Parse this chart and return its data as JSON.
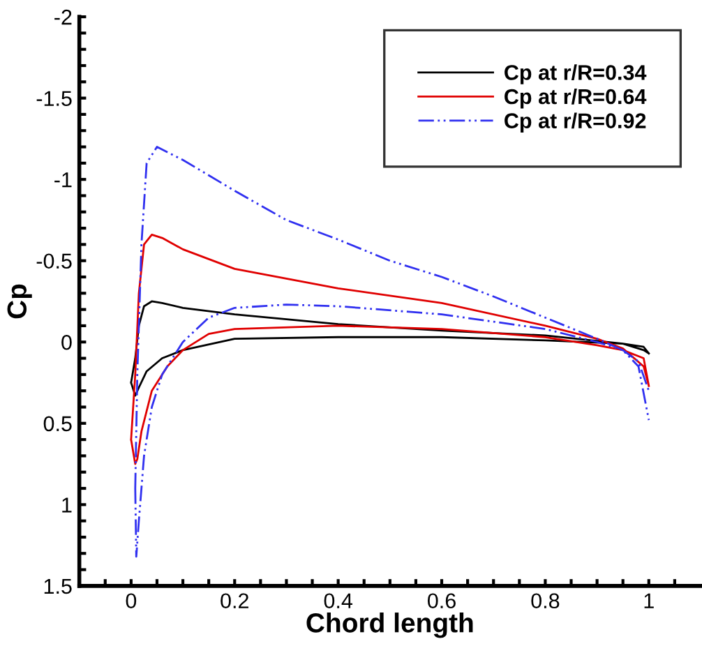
{
  "chart_data": {
    "type": "line",
    "xlabel": "Chord length",
    "ylabel": "Cp",
    "xlim": [
      -0.1,
      1.1
    ],
    "ylim": [
      1.5,
      -2
    ],
    "xticks": [
      0,
      0.2,
      0.4,
      0.6,
      0.8,
      1,
      {
        "value": -0.1,
        "label": null
      },
      {
        "value": -0.05,
        "label": null
      },
      {
        "value": 0.05,
        "label": null
      },
      {
        "value": 0.1,
        "label": null
      },
      {
        "value": 0.15,
        "label": null
      },
      {
        "value": 0.25,
        "label": null
      },
      {
        "value": 0.3,
        "label": null
      },
      {
        "value": 0.35,
        "label": null
      },
      {
        "value": 0.45,
        "label": null
      },
      {
        "value": 0.5,
        "label": null
      },
      {
        "value": 0.55,
        "label": null
      },
      {
        "value": 0.65,
        "label": null
      },
      {
        "value": 0.7,
        "label": null
      },
      {
        "value": 0.75,
        "label": null
      },
      {
        "value": 0.85,
        "label": null
      },
      {
        "value": 0.9,
        "label": null
      },
      {
        "value": 0.95,
        "label": null
      },
      {
        "value": 1.05,
        "label": null
      }
    ],
    "yticks": [
      -2,
      -1.5,
      -1,
      -0.5,
      0,
      0.5,
      1,
      1.5,
      {
        "value": -1.9,
        "label": null
      },
      {
        "value": -1.8,
        "label": null
      },
      {
        "value": -1.7,
        "label": null
      },
      {
        "value": -1.6,
        "label": null
      },
      {
        "value": -1.4,
        "label": null
      },
      {
        "value": -1.3,
        "label": null
      },
      {
        "value": -1.2,
        "label": null
      },
      {
        "value": -1.1,
        "label": null
      },
      {
        "value": -0.9,
        "label": null
      },
      {
        "value": -0.8,
        "label": null
      },
      {
        "value": -0.7,
        "label": null
      },
      {
        "value": -0.6,
        "label": null
      },
      {
        "value": -0.4,
        "label": null
      },
      {
        "value": -0.3,
        "label": null
      },
      {
        "value": -0.2,
        "label": null
      },
      {
        "value": -0.1,
        "label": null
      },
      {
        "value": 0.1,
        "label": null
      },
      {
        "value": 0.2,
        "label": null
      },
      {
        "value": 0.3,
        "label": null
      },
      {
        "value": 0.4,
        "label": null
      },
      {
        "value": 0.6,
        "label": null
      },
      {
        "value": 0.7,
        "label": null
      },
      {
        "value": 0.8,
        "label": null
      },
      {
        "value": 0.9,
        "label": null
      },
      {
        "value": 1.1,
        "label": null
      },
      {
        "value": 1.2,
        "label": null
      },
      {
        "value": 1.3,
        "label": null
      },
      {
        "value": 1.4,
        "label": null
      }
    ],
    "grid": false,
    "legend": "top right",
    "series": [
      {
        "name": "Cp at r/R=0.34",
        "color": "#000000",
        "line_style": "solid",
        "x": [
          0.0,
          0.008,
          0.015,
          0.025,
          0.04,
          0.06,
          0.1,
          0.2,
          0.4,
          0.6,
          0.8,
          0.95,
          0.99,
          1.0,
          null,
          0.0,
          0.008,
          0.015,
          0.03,
          0.06,
          0.1,
          0.2,
          0.4,
          0.6,
          0.8,
          0.95,
          0.99,
          1.0
        ],
        "values": [
          0.25,
          0.1,
          -0.1,
          -0.22,
          -0.25,
          -0.24,
          -0.21,
          -0.17,
          -0.11,
          -0.07,
          -0.04,
          0.01,
          0.05,
          0.07,
          null,
          0.25,
          0.33,
          0.28,
          0.18,
          0.1,
          0.05,
          -0.02,
          -0.03,
          -0.03,
          -0.01,
          0.01,
          0.03,
          0.07
        ]
      },
      {
        "name": "Cp at r/R=0.64",
        "color": "#e00000",
        "line_style": "solid",
        "x": [
          0.0,
          0.008,
          0.015,
          0.025,
          0.04,
          0.06,
          0.1,
          0.2,
          0.4,
          0.6,
          0.8,
          0.9,
          0.95,
          0.99,
          1.0,
          null,
          0.0,
          0.008,
          0.012,
          0.02,
          0.04,
          0.07,
          0.1,
          0.15,
          0.2,
          0.4,
          0.6,
          0.8,
          0.9,
          0.95,
          0.99,
          1.0
        ],
        "values": [
          0.6,
          0.2,
          -0.3,
          -0.6,
          -0.66,
          -0.64,
          -0.57,
          -0.45,
          -0.33,
          -0.24,
          -0.1,
          -0.02,
          0.04,
          0.15,
          0.27,
          null,
          0.6,
          0.75,
          0.72,
          0.55,
          0.3,
          0.15,
          0.05,
          -0.05,
          -0.08,
          -0.1,
          -0.08,
          -0.03,
          0.02,
          0.05,
          0.1,
          0.27
        ]
      },
      {
        "name": "Cp at r/R=0.92",
        "color": "#3030f0",
        "line_style": "dashdot",
        "x": [
          0.008,
          0.012,
          0.02,
          0.03,
          0.05,
          0.1,
          0.2,
          0.3,
          0.4,
          0.5,
          0.6,
          0.7,
          0.8,
          0.9,
          0.95,
          0.98,
          1.0,
          null,
          0.008,
          0.01,
          0.015,
          0.025,
          0.04,
          0.06,
          0.1,
          0.15,
          0.2,
          0.3,
          0.4,
          0.6,
          0.8,
          0.9,
          0.95,
          0.98,
          1.0
        ],
        "values": [
          0.9,
          0.2,
          -0.6,
          -1.1,
          -1.2,
          -1.12,
          -0.93,
          -0.75,
          -0.63,
          -0.5,
          -0.4,
          -0.28,
          -0.15,
          -0.02,
          0.05,
          0.15,
          0.48,
          null,
          0.9,
          1.32,
          1.1,
          0.7,
          0.4,
          0.2,
          0.0,
          -0.15,
          -0.21,
          -0.23,
          -0.22,
          -0.17,
          -0.08,
          0.0,
          0.05,
          0.12,
          0.3
        ]
      }
    ]
  }
}
